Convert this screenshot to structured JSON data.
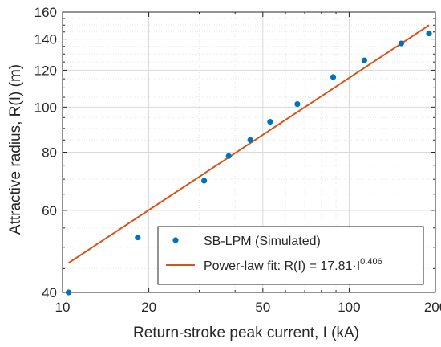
{
  "chart_data": {
    "type": "scatter",
    "xscale": "log",
    "yscale": "log",
    "xlim": [
      10,
      200
    ],
    "ylim": [
      40,
      160
    ],
    "grid": "on (major and minor)",
    "legend_position": "bottom-right",
    "xlabel": "Return-stroke peak current, I (kA)",
    "ylabel": "Attractive radius, R(I) (m)",
    "x_ticks": [
      10,
      20,
      50,
      100,
      200
    ],
    "x_tick_labels": [
      "10",
      "20",
      "50",
      "100",
      "200"
    ],
    "y_ticks": [
      40,
      60,
      80,
      100,
      120,
      140,
      160
    ],
    "y_tick_labels": [
      "40",
      "60",
      "80",
      "100",
      "120",
      "140",
      "160"
    ],
    "series": [
      {
        "name": "SB-LPM (Simulated)",
        "kind": "markers",
        "color": "#0072BD",
        "x": [
          10.5,
          18.3,
          31.2,
          38.0,
          45.2,
          53.0,
          66.0,
          88.0,
          113.0,
          152.0,
          190.0
        ],
        "y": [
          40.0,
          52.5,
          69.5,
          78.5,
          85.0,
          93.0,
          101.5,
          116.0,
          126.0,
          137.0,
          144.0
        ]
      },
      {
        "name_text": "Power-law fit: R(I) = 17.81·I",
        "name_exponent": "0.406",
        "kind": "line",
        "color": "#D95319",
        "coefficient": 17.81,
        "exponent": 0.406,
        "x_range": [
          10.5,
          190.0
        ]
      }
    ]
  }
}
